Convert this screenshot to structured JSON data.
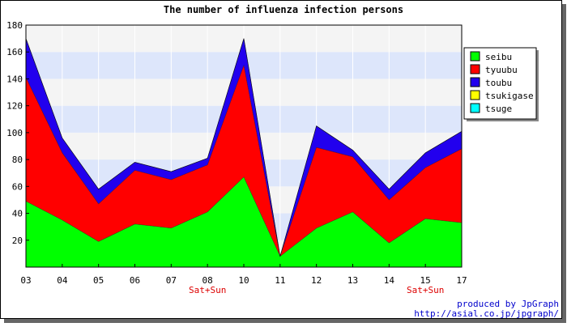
{
  "chart_data": {
    "type": "area",
    "stacked": true,
    "title": "The number of influenza infection persons",
    "categories": [
      "03",
      "04",
      "05",
      "06",
      "07",
      "08",
      "10",
      "11",
      "12",
      "13",
      "14",
      "15",
      "17"
    ],
    "category_sublabels": [
      "",
      "",
      "",
      "",
      "",
      "Sat+Sun",
      "",
      "",
      "",
      "",
      "",
      "Sat+Sun",
      ""
    ],
    "ylim": [
      0,
      180
    ],
    "yticks": [
      20,
      40,
      60,
      80,
      100,
      120,
      140,
      160,
      180
    ],
    "grid": true,
    "legend_position": "right",
    "series": [
      {
        "name": "seibu",
        "color": "#00ff00",
        "values": [
          49,
          35,
          19,
          32,
          29,
          41,
          67,
          8,
          29,
          41,
          18,
          36,
          33
        ]
      },
      {
        "name": "tyuubu",
        "color": "#ff0000",
        "values": [
          92,
          50,
          28,
          40,
          36,
          35,
          83,
          0,
          60,
          41,
          32,
          38,
          55
        ]
      },
      {
        "name": "toubu",
        "color": "#2200ee",
        "values": [
          29,
          11,
          11,
          6,
          6,
          5,
          20,
          0,
          16,
          5,
          8,
          11,
          13
        ]
      },
      {
        "name": "tsukigase",
        "color": "#ffff00",
        "values": [
          0,
          0,
          0,
          0,
          0,
          0,
          0,
          0,
          0,
          0,
          0,
          0,
          0
        ]
      },
      {
        "name": "tsuge",
        "color": "#00ffff",
        "values": [
          0,
          0,
          0,
          0,
          0,
          0,
          0,
          0,
          0,
          0,
          0,
          0,
          0
        ]
      }
    ]
  },
  "footer": {
    "credit": "produced by JpGraph",
    "url": "http://asial.co.jp/jpgraph/"
  }
}
